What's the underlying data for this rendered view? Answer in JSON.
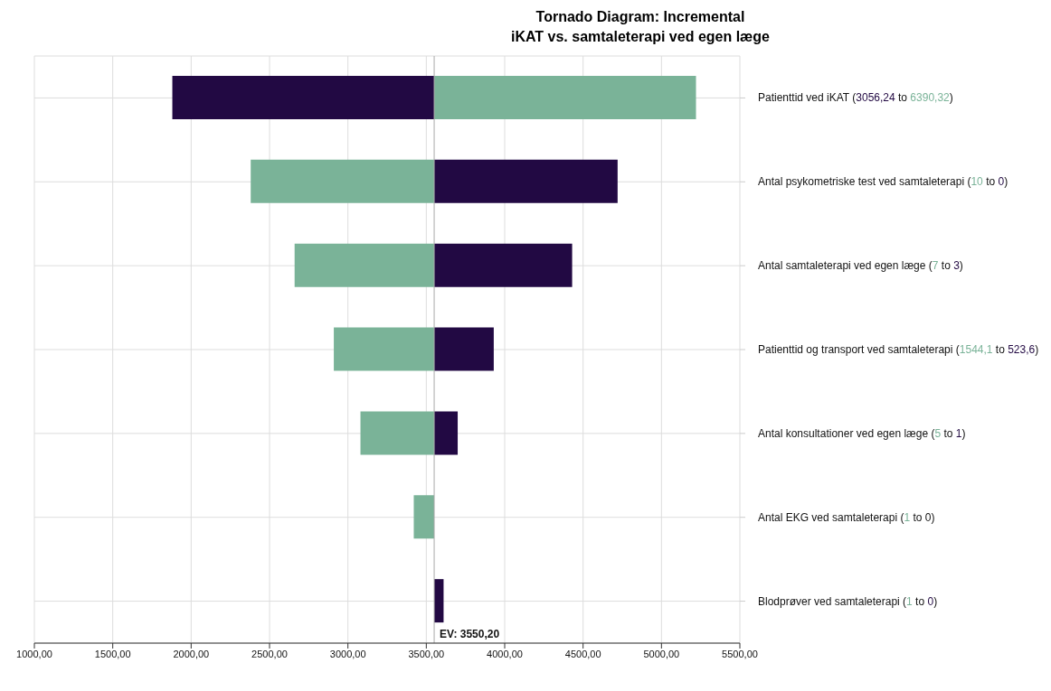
{
  "chart_data": {
    "type": "bar",
    "orientation": "horizontal",
    "title": "Tornado Diagram: Incremental\niKAT vs. samtaleterapi ved egen læge",
    "categories": [
      "Patienttid ved iKAT (3056,24 to 6390,32)",
      "Antal psykometriske test ved samtaleterapi (10 to 0)",
      "Antal samtaleterapi ved egen læge (7 to 3)",
      "Patienttid og transport ved samtaleterapi (1544,1 to 523,6)",
      "Antal konsultationer ved egen læge (5 to 1)",
      "Antal EKG ved samtaleterapi (1 to 0)",
      "Blodprøver ved samtaleterapi (1 to 0)"
    ],
    "series": [
      {
        "colors": [
          "#220943",
          "#7ab398",
          "#7ab398",
          "#7ab398",
          "#7ab398",
          "#7ab398",
          null
        ],
        "base": [
          1880,
          2380,
          2660,
          2910,
          3080,
          3420,
          null
        ],
        "values": [
          1670,
          1170,
          890,
          640,
          470,
          130,
          null
        ]
      },
      {
        "colors": [
          "#7ab398",
          "#220943",
          "#220943",
          "#220943",
          "#220943",
          null,
          "#220943"
        ],
        "base": [
          3550.2,
          3550.2,
          3550.2,
          3550.2,
          3550.2,
          null,
          3550.2
        ],
        "values": [
          1670,
          1170,
          880,
          380,
          150,
          null,
          60
        ]
      }
    ],
    "xlim": [
      1000,
      5500
    ],
    "xticks": [
      {
        "value": 1000,
        "label": "1000,00"
      },
      {
        "value": 1500,
        "label": "1500,00"
      },
      {
        "value": 2000,
        "label": "2000,00"
      },
      {
        "value": 2500,
        "label": "2500,00"
      },
      {
        "value": 3000,
        "label": "3000,00"
      },
      {
        "value": 3500,
        "label": "3500,00"
      },
      {
        "value": 4000,
        "label": "4000,00"
      },
      {
        "value": 4500,
        "label": "4500,00"
      },
      {
        "value": 5000,
        "label": "5000,00"
      },
      {
        "value": 5500,
        "label": "5500,00"
      }
    ],
    "ref_lines": [
      {
        "axis": "x",
        "value": 3550.2,
        "label": "EV: 3550,20",
        "color": "#aaaaaa"
      }
    ],
    "grid": true,
    "legend": false
  }
}
